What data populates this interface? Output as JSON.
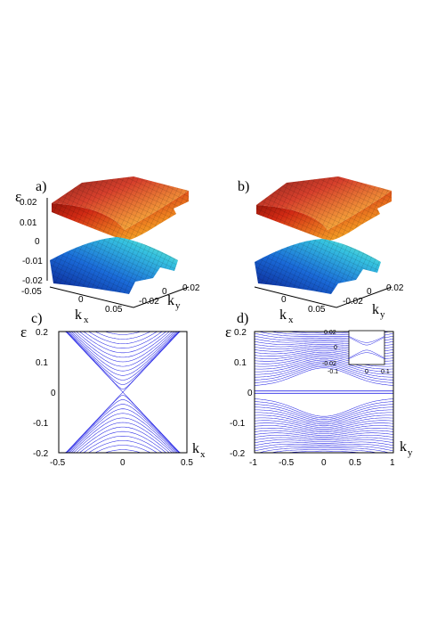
{
  "panels": {
    "a": {
      "label": "a)"
    },
    "b": {
      "label": "b)"
    },
    "c": {
      "label": "c)"
    },
    "d": {
      "label": "d)"
    }
  },
  "surface": {
    "zlabel": "ε",
    "xlabel": "k",
    "xlabel_sub": "x",
    "ylabel": "k",
    "ylabel_sub": "y",
    "zticks": [
      "0.02",
      "0.01",
      "0",
      "-0.01",
      "-0.02"
    ],
    "xticks": [
      "-0.05",
      "0",
      "0.05"
    ],
    "yticks": [
      "-0.02",
      "0",
      "0.02"
    ]
  },
  "colors": {
    "bands": "#2a2ae6",
    "surface_top": "#b41d10",
    "surface_bottom": "#1a78d8"
  },
  "chart_data": [
    {
      "type": "line",
      "panel": "c)",
      "ylabel": "ε",
      "xlabel": "k",
      "xlabel_sub": "x",
      "xlim": [
        -0.5,
        0.5
      ],
      "ylim": [
        -0.2,
        0.2
      ],
      "xticks": [
        "-0.5",
        "0",
        "0.5"
      ],
      "yticks": [
        "0.2",
        "0.1",
        "0",
        "-0.1",
        "-0.2"
      ],
      "description_bands": "Dirac cone spectrum |ε| = v|k_x| plus hyperbolic subbands",
      "velocity": 0.45,
      "gaps": [
        0.01,
        0.025,
        0.04,
        0.055,
        0.07,
        0.085,
        0.1,
        0.115,
        0.13,
        0.145,
        0.16,
        0.175,
        0.19
      ]
    },
    {
      "type": "line",
      "panel": "d)",
      "ylabel": "ε",
      "xlabel": "k",
      "xlabel_sub": "y",
      "xlim": [
        -1,
        1
      ],
      "ylim": [
        -0.2,
        0.2
      ],
      "xticks": [
        "-1",
        "-0.5",
        "0",
        "0.5",
        "1"
      ],
      "yticks": [
        "0.2",
        "0.1",
        "0",
        "-0.1",
        "-0.2"
      ],
      "inset": {
        "ylim": [
          -0.02,
          0.02
        ],
        "xlim": [
          -0.1,
          0.1
        ],
        "yticks": [
          "0.02",
          "0",
          "-0.02"
        ],
        "xticks": [
          "-0.1",
          "0",
          "0.1"
        ]
      }
    }
  ]
}
